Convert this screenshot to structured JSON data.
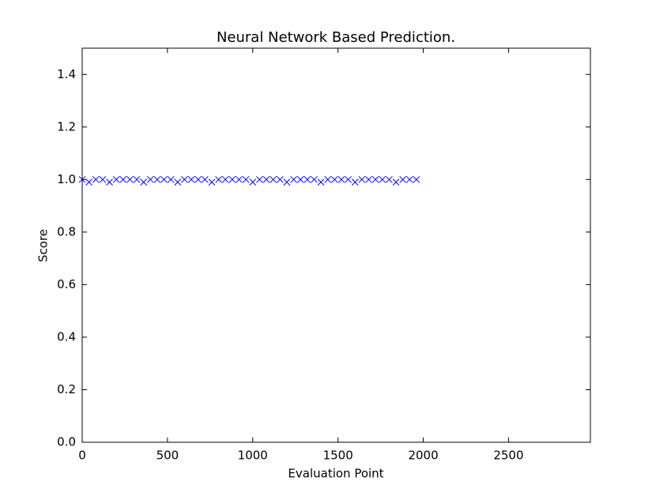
{
  "chart_data": {
    "type": "scatter",
    "title": "Neural Network Based Prediction.",
    "xlabel": "Evaluation Point",
    "ylabel": "Score",
    "marker": "x",
    "color": "#0000ff",
    "x": [
      0,
      40,
      80,
      120,
      160,
      200,
      240,
      280,
      320,
      360,
      400,
      440,
      480,
      520,
      560,
      600,
      640,
      680,
      720,
      760,
      800,
      840,
      880,
      920,
      960,
      1000,
      1040,
      1080,
      1120,
      1160,
      1200,
      1240,
      1280,
      1320,
      1360,
      1400,
      1440,
      1480,
      1520,
      1560,
      1600,
      1640,
      1680,
      1720,
      1760,
      1800,
      1840,
      1880,
      1920,
      1960
    ],
    "values": [
      1,
      0.99,
      1,
      1,
      0.99,
      1,
      1,
      1,
      1,
      0.99,
      1,
      1,
      1,
      1,
      0.99,
      1,
      1,
      1,
      1,
      0.99,
      1,
      1,
      1,
      1,
      1,
      0.99,
      1,
      1,
      1,
      1,
      0.99,
      1,
      1,
      1,
      1,
      0.99,
      1,
      1,
      1,
      1,
      0.99,
      1,
      1,
      1,
      1,
      1,
      0.99,
      1,
      1,
      1
    ],
    "xlim": [
      0,
      2980
    ],
    "ylim": [
      0,
      1.5
    ],
    "xticks": [
      0,
      500,
      1000,
      1500,
      2000,
      2500
    ],
    "yticks": [
      {
        "value": 0,
        "label": "0.0"
      },
      {
        "value": 0.2,
        "label": "0.2"
      },
      {
        "value": 0.4,
        "label": "0.4"
      },
      {
        "value": 0.6,
        "label": "0.6"
      },
      {
        "value": 0.8,
        "label": "0.8"
      },
      {
        "value": 1.0,
        "label": "1.0"
      },
      {
        "value": 1.2,
        "label": "1.2"
      },
      {
        "value": 1.4,
        "label": "1.4"
      }
    ],
    "grid": false
  }
}
